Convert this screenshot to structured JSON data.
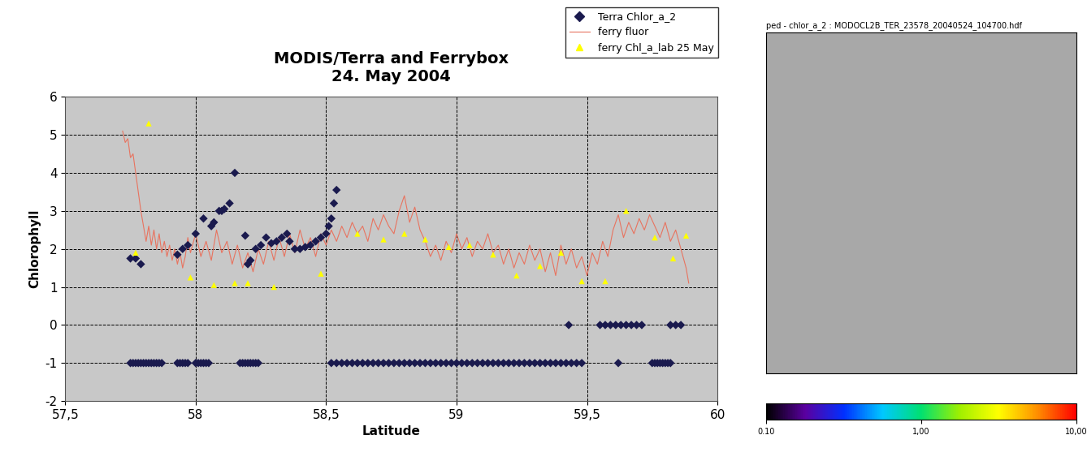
{
  "chart_data": [
    {
      "type": "scatter",
      "title": "MODIS/Terra and Ferrybox\n24. May 2004",
      "x_label": "Latitude",
      "y_label": "Chlorophyll",
      "xlim": [
        57.5,
        60
      ],
      "xticks": [
        {
          "value": 57.5,
          "label": "57,5"
        },
        58,
        {
          "value": 58.5,
          "label": "58,5"
        },
        59,
        {
          "value": 59.5,
          "label": "59,5"
        },
        60
      ],
      "ylim": [
        -2,
        6
      ],
      "yticks": [
        -2,
        -1,
        0,
        1,
        2,
        3,
        4,
        5,
        6
      ],
      "grid": true,
      "legend": "upper right",
      "series": [
        {
          "name": "Terra Chlor_a_2",
          "type": "scatter",
          "marker": "diamond",
          "color": "#1a1a4e",
          "x": [
            57.75,
            57.77,
            57.79,
            57.93,
            57.95,
            57.97,
            58.0,
            58.03,
            58.06,
            58.07,
            58.09,
            58.1,
            58.11,
            58.13,
            58.15,
            58.19,
            58.2,
            58.21,
            58.23,
            58.25,
            58.27,
            58.29,
            58.31,
            58.33,
            58.35,
            58.36,
            58.38,
            58.4,
            58.42,
            58.44,
            58.46,
            58.48,
            58.5,
            58.51,
            58.52,
            58.53,
            58.54,
            57.75,
            57.76,
            57.77,
            57.78,
            57.79,
            57.8,
            57.81,
            57.82,
            57.83,
            57.84,
            57.85,
            57.86,
            57.87,
            57.93,
            57.94,
            57.95,
            57.96,
            57.97,
            58.0,
            58.01,
            58.02,
            58.03,
            58.04,
            58.05,
            58.17,
            58.18,
            58.19,
            58.2,
            58.21,
            58.22,
            58.23,
            58.24,
            58.52,
            58.54,
            58.56,
            58.58,
            58.6,
            58.62,
            58.64,
            58.66,
            58.68,
            58.7,
            58.72,
            58.74,
            58.76,
            58.78,
            58.8,
            58.82,
            58.84,
            58.86,
            58.88,
            58.9,
            58.92,
            58.94,
            58.96,
            58.98,
            59.0,
            59.02,
            59.04,
            59.06,
            59.08,
            59.1,
            59.12,
            59.14,
            59.16,
            59.18,
            59.2,
            59.22,
            59.24,
            59.26,
            59.28,
            59.3,
            59.32,
            59.34,
            59.36,
            59.38,
            59.4,
            59.42,
            59.44,
            59.46,
            59.48,
            59.62,
            59.75,
            59.76,
            59.77,
            59.78,
            59.79,
            59.8,
            59.81,
            59.82,
            59.43,
            59.55,
            59.57,
            59.59,
            59.61,
            59.63,
            59.65,
            59.67,
            59.69,
            59.71,
            59.82,
            59.84,
            59.86
          ],
          "values": [
            1.75,
            1.75,
            1.6,
            1.85,
            2.0,
            2.1,
            2.4,
            2.8,
            2.6,
            2.7,
            3.0,
            3.0,
            3.05,
            3.2,
            4.0,
            2.35,
            1.6,
            1.7,
            2.0,
            2.1,
            2.3,
            2.15,
            2.2,
            2.3,
            2.4,
            2.2,
            2.0,
            2.0,
            2.05,
            2.1,
            2.2,
            2.3,
            2.4,
            2.6,
            2.8,
            3.2,
            3.55,
            -1,
            -1,
            -1,
            -1,
            -1,
            -1,
            -1,
            -1,
            -1,
            -1,
            -1,
            -1,
            -1,
            -1,
            -1,
            -1,
            -1,
            -1,
            -1,
            -1,
            -1,
            -1,
            -1,
            -1,
            -1,
            -1,
            -1,
            -1,
            -1,
            -1,
            -1,
            -1,
            -1,
            -1,
            -1,
            -1,
            -1,
            -1,
            -1,
            -1,
            -1,
            -1,
            -1,
            -1,
            -1,
            -1,
            -1,
            -1,
            -1,
            -1,
            -1,
            -1,
            -1,
            -1,
            -1,
            -1,
            -1,
            -1,
            -1,
            -1,
            -1,
            -1,
            -1,
            -1,
            -1,
            -1,
            -1,
            -1,
            -1,
            -1,
            -1,
            -1,
            -1,
            -1,
            -1,
            -1,
            -1,
            -1,
            -1,
            -1,
            -1,
            -1,
            -1,
            -1,
            -1,
            -1,
            -1,
            -1,
            -1,
            -1,
            0,
            0,
            0,
            0,
            0,
            0,
            0,
            0,
            0,
            0,
            0,
            0,
            0
          ]
        },
        {
          "name": "ferry fluor",
          "type": "line",
          "line_style": "solid",
          "color": "#e8735f",
          "x": [
            57.72,
            57.73,
            57.74,
            57.75,
            57.76,
            57.77,
            57.78,
            57.79,
            57.8,
            57.81,
            57.82,
            57.83,
            57.84,
            57.85,
            57.86,
            57.87,
            57.88,
            57.89,
            57.9,
            57.91,
            57.92,
            57.93,
            57.94,
            57.95,
            57.96,
            57.97,
            57.98,
            58.0,
            58.02,
            58.04,
            58.06,
            58.08,
            58.1,
            58.12,
            58.14,
            58.16,
            58.18,
            58.2,
            58.22,
            58.24,
            58.26,
            58.28,
            58.3,
            58.32,
            58.34,
            58.36,
            58.38,
            58.4,
            58.42,
            58.44,
            58.46,
            58.48,
            58.5,
            58.52,
            58.54,
            58.56,
            58.58,
            58.6,
            58.62,
            58.64,
            58.66,
            58.68,
            58.7,
            58.72,
            58.74,
            58.76,
            58.78,
            58.8,
            58.82,
            58.84,
            58.86,
            58.88,
            58.9,
            58.92,
            58.94,
            58.96,
            58.98,
            59.0,
            59.02,
            59.04,
            59.06,
            59.08,
            59.1,
            59.12,
            59.14,
            59.16,
            59.18,
            59.2,
            59.22,
            59.24,
            59.26,
            59.28,
            59.3,
            59.32,
            59.34,
            59.36,
            59.38,
            59.4,
            59.42,
            59.44,
            59.46,
            59.48,
            59.5,
            59.52,
            59.54,
            59.56,
            59.58,
            59.6,
            59.62,
            59.64,
            59.66,
            59.68,
            59.7,
            59.72,
            59.74,
            59.76,
            59.78,
            59.8,
            59.82,
            59.84,
            59.86,
            59.88,
            59.89
          ],
          "values": [
            5.1,
            4.8,
            4.9,
            4.4,
            4.5,
            4.0,
            3.5,
            3.0,
            2.6,
            2.2,
            2.6,
            2.1,
            2.5,
            2.0,
            2.4,
            1.9,
            2.2,
            1.8,
            2.1,
            1.7,
            2.0,
            1.6,
            1.9,
            1.5,
            1.8,
            2.3,
            1.9,
            2.4,
            1.8,
            2.2,
            1.7,
            2.5,
            1.9,
            2.2,
            1.6,
            2.1,
            1.5,
            1.9,
            1.4,
            2.0,
            1.6,
            2.2,
            1.7,
            2.3,
            1.8,
            2.4,
            1.9,
            2.5,
            2.0,
            2.3,
            1.8,
            2.4,
            2.1,
            2.5,
            2.2,
            2.6,
            2.3,
            2.7,
            2.4,
            2.6,
            2.2,
            2.8,
            2.5,
            2.9,
            2.6,
            2.4,
            3.0,
            3.4,
            2.7,
            3.1,
            2.5,
            2.2,
            1.8,
            2.1,
            1.7,
            2.2,
            1.9,
            2.4,
            2.0,
            2.3,
            1.8,
            2.2,
            2.0,
            2.4,
            1.9,
            2.1,
            1.6,
            2.0,
            1.5,
            1.9,
            1.6,
            2.1,
            1.7,
            2.0,
            1.4,
            1.9,
            1.3,
            2.1,
            1.6,
            2.0,
            1.5,
            1.8,
            1.3,
            1.9,
            1.6,
            2.2,
            1.8,
            2.5,
            2.9,
            2.3,
            2.7,
            2.4,
            2.8,
            2.5,
            2.9,
            2.6,
            2.3,
            2.7,
            2.2,
            2.5,
            2.0,
            1.5,
            1.1
          ]
        },
        {
          "name": "ferry Chl_a_lab 25 May",
          "type": "scatter",
          "marker": "triangle",
          "color": "#ffff00",
          "x": [
            57.77,
            57.82,
            57.98,
            58.07,
            58.15,
            58.2,
            58.3,
            58.48,
            58.62,
            58.72,
            58.8,
            58.88,
            58.97,
            59.05,
            59.14,
            59.23,
            59.32,
            59.4,
            59.48,
            59.57,
            59.65,
            59.76,
            59.83,
            59.88
          ],
          "values": [
            1.9,
            5.3,
            1.25,
            1.05,
            1.1,
            1.1,
            1.0,
            1.35,
            2.4,
            2.25,
            2.4,
            2.25,
            2.05,
            2.1,
            1.85,
            1.3,
            1.55,
            1.9,
            1.15,
            1.15,
            3.0,
            2.3,
            1.75,
            2.35
          ]
        }
      ]
    },
    {
      "type": "image",
      "title": "ped - chlor_a_2 : MODOCL2B_TER_23578_20040524_104700.hdf",
      "log": true,
      "colorbar_range": [
        0.1,
        10
      ],
      "colorbar_ticks": [
        {
          "value": 0.1,
          "label": "0.10"
        },
        {
          "value": 1,
          "label": "1,00"
        },
        {
          "value": 10,
          "label": "10,00"
        }
      ]
    }
  ]
}
